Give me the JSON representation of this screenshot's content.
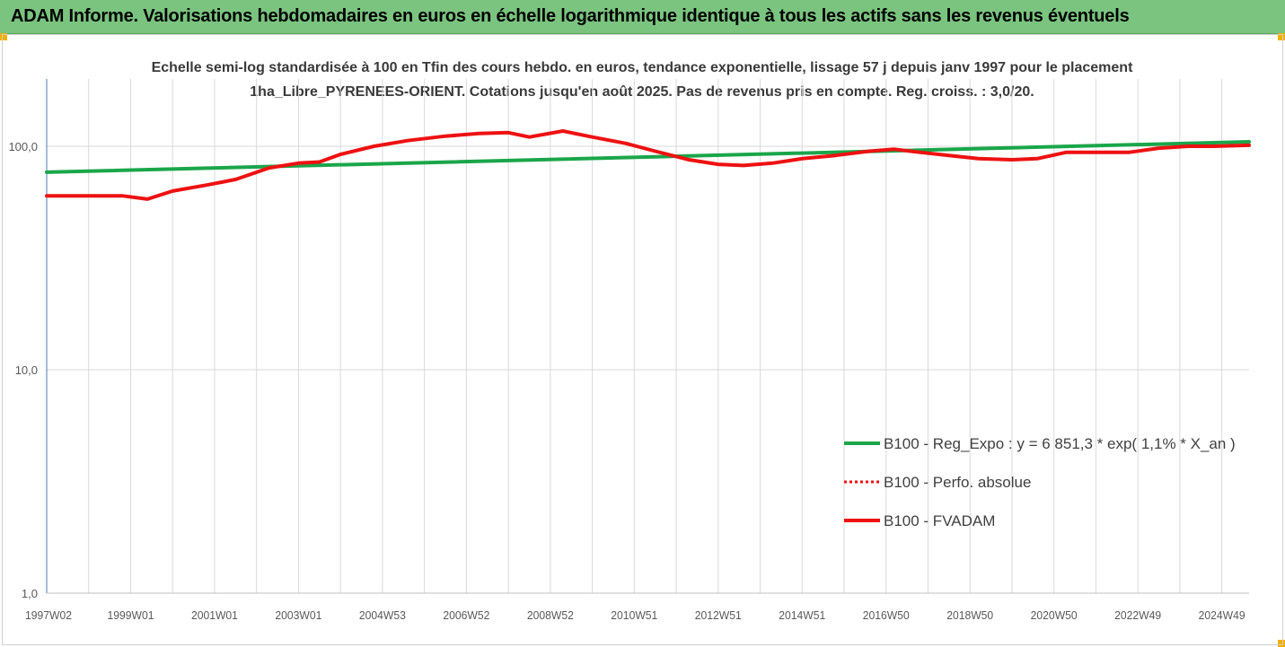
{
  "header": {
    "title": "ADAM Informe. Valorisations hebdomadaires en euros en échelle logarithmique identique à tous les actifs sans les revenus éventuels"
  },
  "colors": {
    "banner": "#7ac47f",
    "trend": "#1aa64a",
    "fvadam": "#ee1111",
    "perfo": "#ee1111",
    "grid": "#d9d9d9",
    "corner": "#f0b000"
  },
  "chart_data": {
    "type": "line",
    "title": "",
    "subtitle": "Echelle semi-log standardisée à 100 en Tfin des cours hebdo. en euros, tendance exponentielle, lissage 57 j depuis janv 1997 pour le placement 1ha_Libre_PYRENEES-ORIENT. Cotations jusqu'en août 2025. Pas de revenus pris en compte. Reg. croiss. : 3,0/20.",
    "xlabel": "",
    "ylabel": "",
    "yscale": "log",
    "ylim": [
      1,
      200
    ],
    "yticks": [
      {
        "value": 1,
        "label": "1,0"
      },
      {
        "value": 10,
        "label": "10,0"
      },
      {
        "value": 100,
        "label": "100,0"
      }
    ],
    "xlim": [
      1997.0,
      2025.65
    ],
    "xticks": [
      {
        "value": 1997.0,
        "label": "1997W02"
      },
      {
        "value": 1999.0,
        "label": "1999W01"
      },
      {
        "value": 2001.0,
        "label": "2001W01"
      },
      {
        "value": 2003.0,
        "label": "2003W01"
      },
      {
        "value": 2005.0,
        "label": "2004W53"
      },
      {
        "value": 2007.0,
        "label": "2006W52"
      },
      {
        "value": 2009.0,
        "label": "2008W52"
      },
      {
        "value": 2011.0,
        "label": "2010W51"
      },
      {
        "value": 2013.0,
        "label": "2012W51"
      },
      {
        "value": 2015.0,
        "label": "2014W51"
      },
      {
        "value": 2017.0,
        "label": "2016W50"
      },
      {
        "value": 2019.0,
        "label": "2018W50"
      },
      {
        "value": 2021.0,
        "label": "2020W50"
      },
      {
        "value": 2023.0,
        "label": "2022W49"
      },
      {
        "value": 2025.0,
        "label": "2024W49"
      }
    ],
    "grid": true,
    "legend_position": "right",
    "series": [
      {
        "name": "B100 - Reg_Expo : y = 6 851,3 * exp( 1,1% *  X_an )",
        "style": "solid-thick",
        "x": [
          1997.0,
          2025.65
        ],
        "y": [
          76.5,
          104.7
        ]
      },
      {
        "name": "B100 - Perfo. absolue",
        "style": "dotted",
        "x": [],
        "y": []
      },
      {
        "name": "B100 - FVADAM",
        "style": "solid-thick",
        "x": [
          1997.0,
          1998.0,
          1998.8,
          1999.4,
          2000.0,
          2000.8,
          2001.5,
          2002.3,
          2003.0,
          2003.5,
          2004.0,
          2004.8,
          2005.6,
          2006.5,
          2007.3,
          2008.0,
          2008.5,
          2009.3,
          2010.0,
          2010.8,
          2011.5,
          2012.3,
          2013.0,
          2013.6,
          2014.3,
          2015.0,
          2015.8,
          2016.6,
          2017.2,
          2017.8,
          2018.5,
          2019.2,
          2020.0,
          2020.6,
          2021.3,
          2022.0,
          2022.8,
          2023.5,
          2024.2,
          2024.8,
          2025.65
        ],
        "y": [
          60,
          60,
          60,
          58,
          63,
          67,
          71,
          80,
          84,
          85,
          92,
          100,
          106,
          111,
          114,
          115,
          110,
          117,
          110,
          103,
          95,
          87,
          83,
          82,
          84,
          88,
          91,
          95,
          97,
          94,
          91,
          88,
          87,
          88,
          94,
          94,
          94,
          98,
          100,
          100,
          101
        ]
      }
    ]
  }
}
